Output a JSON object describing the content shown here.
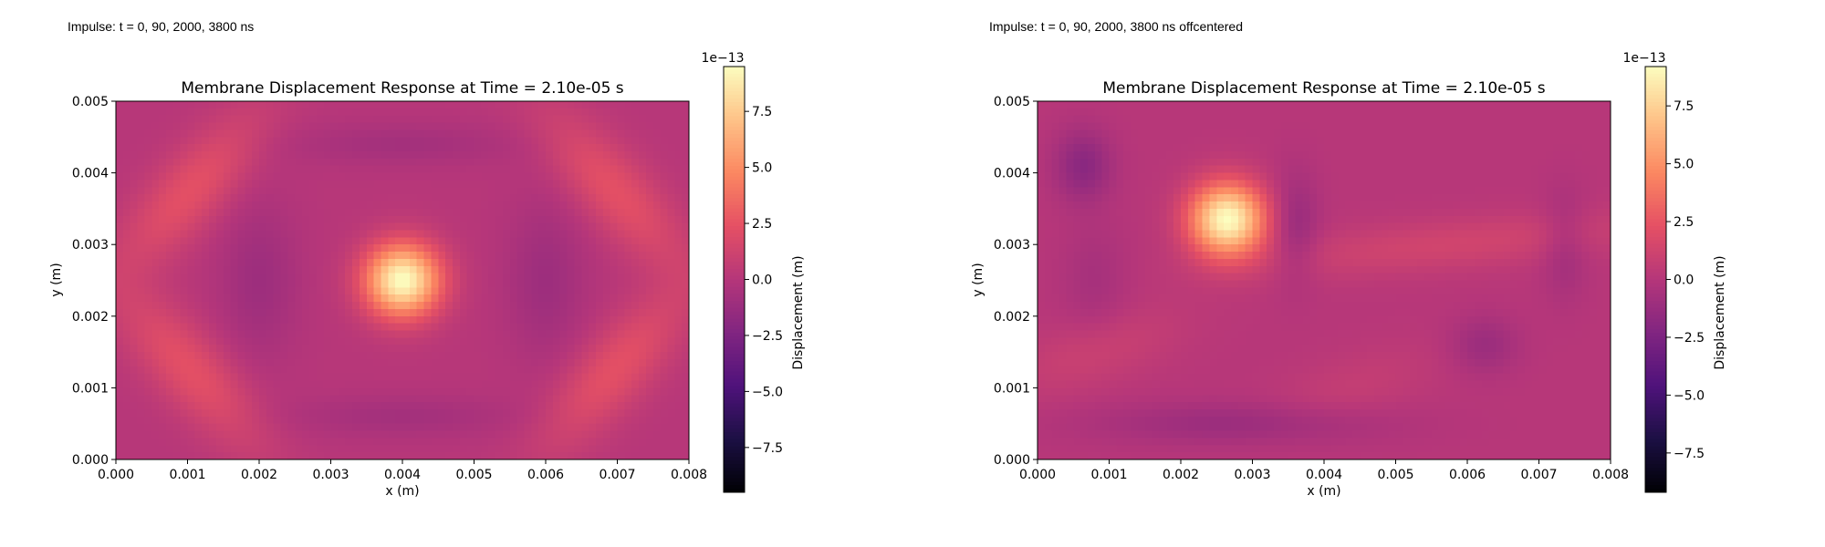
{
  "chart_data": [
    {
      "type": "heatmap",
      "caption": "Impulse: t = 0, 90, 2000, 3800 ns",
      "title": "Membrane Displacement Response at Time = 2.10e-05 s",
      "xlabel": "x (m)",
      "ylabel": "y (m)",
      "xlim": [
        0.0,
        0.008
      ],
      "ylim": [
        0.0,
        0.005
      ],
      "xticks": [
        "0.000",
        "0.001",
        "0.002",
        "0.003",
        "0.004",
        "0.005",
        "0.006",
        "0.007",
        "0.008"
      ],
      "yticks": [
        "0.000",
        "0.001",
        "0.002",
        "0.003",
        "0.004",
        "0.005"
      ],
      "colorbar": {
        "label": "Displacement (m)",
        "scale_label": "1e−13",
        "colormap": "magma",
        "vmin": -9.5,
        "vmax": 9.5,
        "ticks": [
          7.5,
          5.0,
          2.5,
          0.0,
          -2.5,
          -5.0,
          -7.5
        ],
        "tick_labels": [
          "7.5",
          "5.0",
          "2.5",
          "0.0",
          "−2.5",
          "−5.0",
          "−7.5"
        ]
      },
      "peak": {
        "x": 0.004,
        "y": 0.0025
      },
      "grid": false
    },
    {
      "type": "heatmap",
      "caption": "Impulse: t = 0, 90, 2000, 3800 ns offcentered",
      "title": "Membrane Displacement Response at Time = 2.10e-05 s",
      "xlabel": "x (m)",
      "ylabel": "y (m)",
      "xlim": [
        0.0,
        0.008
      ],
      "ylim": [
        0.0,
        0.005
      ],
      "xticks": [
        "0.000",
        "0.001",
        "0.002",
        "0.003",
        "0.004",
        "0.005",
        "0.006",
        "0.007",
        "0.008"
      ],
      "yticks": [
        "0.000",
        "0.001",
        "0.002",
        "0.003",
        "0.004",
        "0.005"
      ],
      "colorbar": {
        "label": "Displacement (m)",
        "scale_label": "1e−13",
        "colormap": "magma",
        "vmin": -9.2,
        "vmax": 9.2,
        "ticks": [
          7.5,
          5.0,
          2.5,
          0.0,
          -2.5,
          -5.0,
          -7.5
        ],
        "tick_labels": [
          "7.5",
          "5.0",
          "2.5",
          "0.0",
          "−2.5",
          "−5.0",
          "−7.5"
        ]
      },
      "peak": {
        "x": 0.00265,
        "y": 0.00335
      },
      "grid": false
    }
  ]
}
